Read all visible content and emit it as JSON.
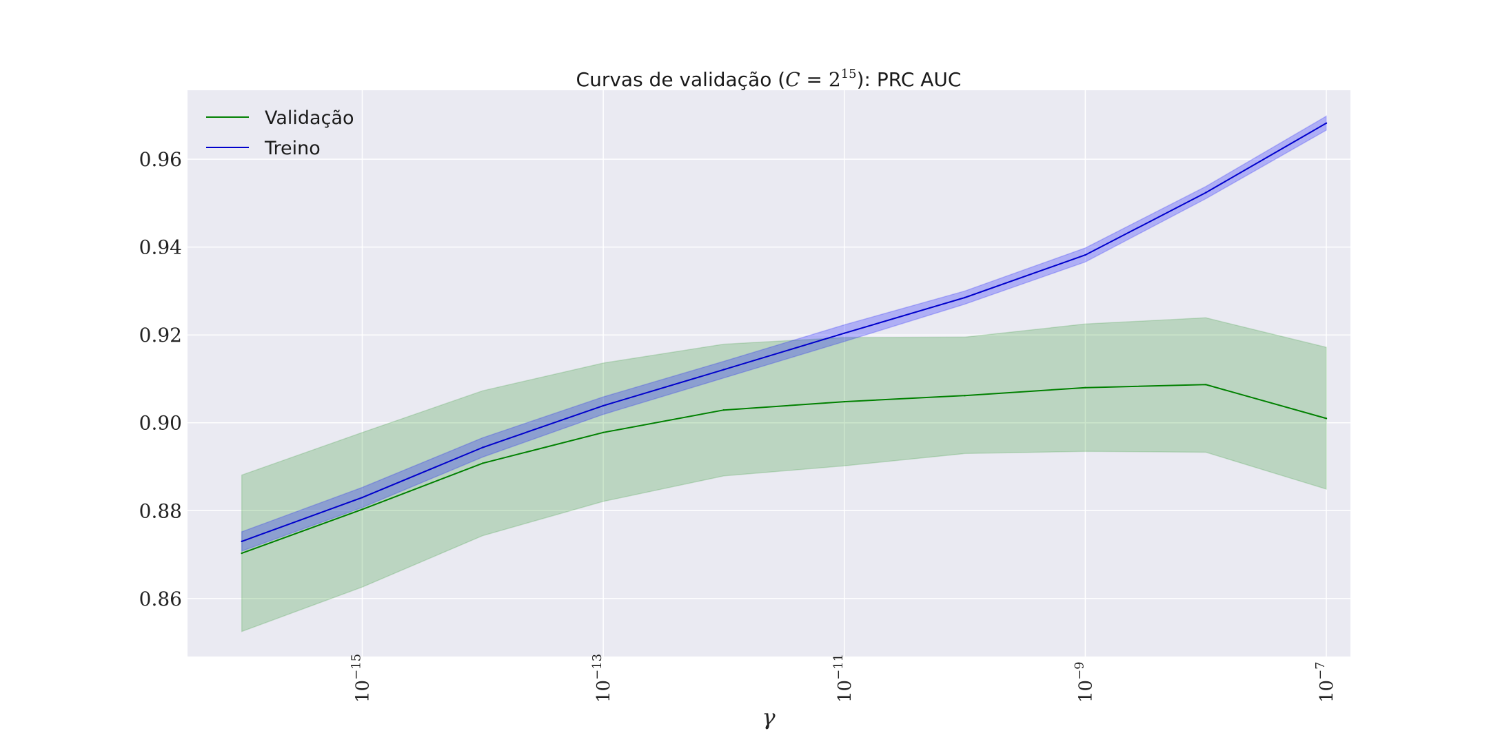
{
  "chart_data": {
    "type": "line",
    "title": {
      "prefix": "Curvas de validação (",
      "math_var": "C",
      "math_eq": " = 2",
      "math_exp": "15",
      "suffix": "): PRC AUC"
    },
    "xlabel": "γ",
    "ylabel": "",
    "x_scale": "log",
    "x": [
      1e-16,
      1e-15,
      1e-14,
      1e-13,
      1e-12,
      1e-11,
      1e-10,
      1e-09,
      1e-08,
      1e-07
    ],
    "x_ticks": [
      {
        "value": 1e-15,
        "base": "10",
        "exponent": "−15"
      },
      {
        "value": 1e-13,
        "base": "10",
        "exponent": "−13"
      },
      {
        "value": 1e-11,
        "base": "10",
        "exponent": "−11"
      },
      {
        "value": 1e-09,
        "base": "10",
        "exponent": "−9"
      },
      {
        "value": 1e-07,
        "base": "10",
        "exponent": "−7"
      }
    ],
    "xlim_log10": [
      -16.45,
      -6.8
    ],
    "ylim": [
      0.8468,
      0.9757
    ],
    "y_ticks": [
      "0.86",
      "0.88",
      "0.90",
      "0.92",
      "0.94",
      "0.96"
    ],
    "grid": true,
    "legend": "top-left",
    "series": [
      {
        "name": "Validação",
        "color": "#008000",
        "band_color": "#008000",
        "band_opacity": 0.2,
        "values": [
          0.8703,
          0.8803,
          0.8908,
          0.8978,
          0.9029,
          0.9048,
          0.9062,
          0.908,
          0.9087,
          0.901
        ],
        "upper": [
          0.8881,
          0.8978,
          0.9073,
          0.9136,
          0.9179,
          0.9194,
          0.9195,
          0.9225,
          0.9239,
          0.9172
        ],
        "lower": [
          0.8525,
          0.8626,
          0.8743,
          0.8821,
          0.8879,
          0.8902,
          0.893,
          0.8935,
          0.8933,
          0.8849
        ]
      },
      {
        "name": "Treino",
        "color": "#0000cc",
        "band_color": "#0000ff",
        "band_opacity": 0.25,
        "values": [
          0.873,
          0.883,
          0.8944,
          0.9039,
          0.9121,
          0.9204,
          0.9285,
          0.9382,
          0.9524,
          0.9682
        ],
        "upper": [
          0.8752,
          0.8853,
          0.8966,
          0.9059,
          0.914,
          0.9223,
          0.93,
          0.9398,
          0.9538,
          0.9698
        ],
        "lower": [
          0.8708,
          0.8807,
          0.8922,
          0.9019,
          0.9102,
          0.9185,
          0.927,
          0.9366,
          0.951,
          0.9666
        ]
      }
    ]
  }
}
